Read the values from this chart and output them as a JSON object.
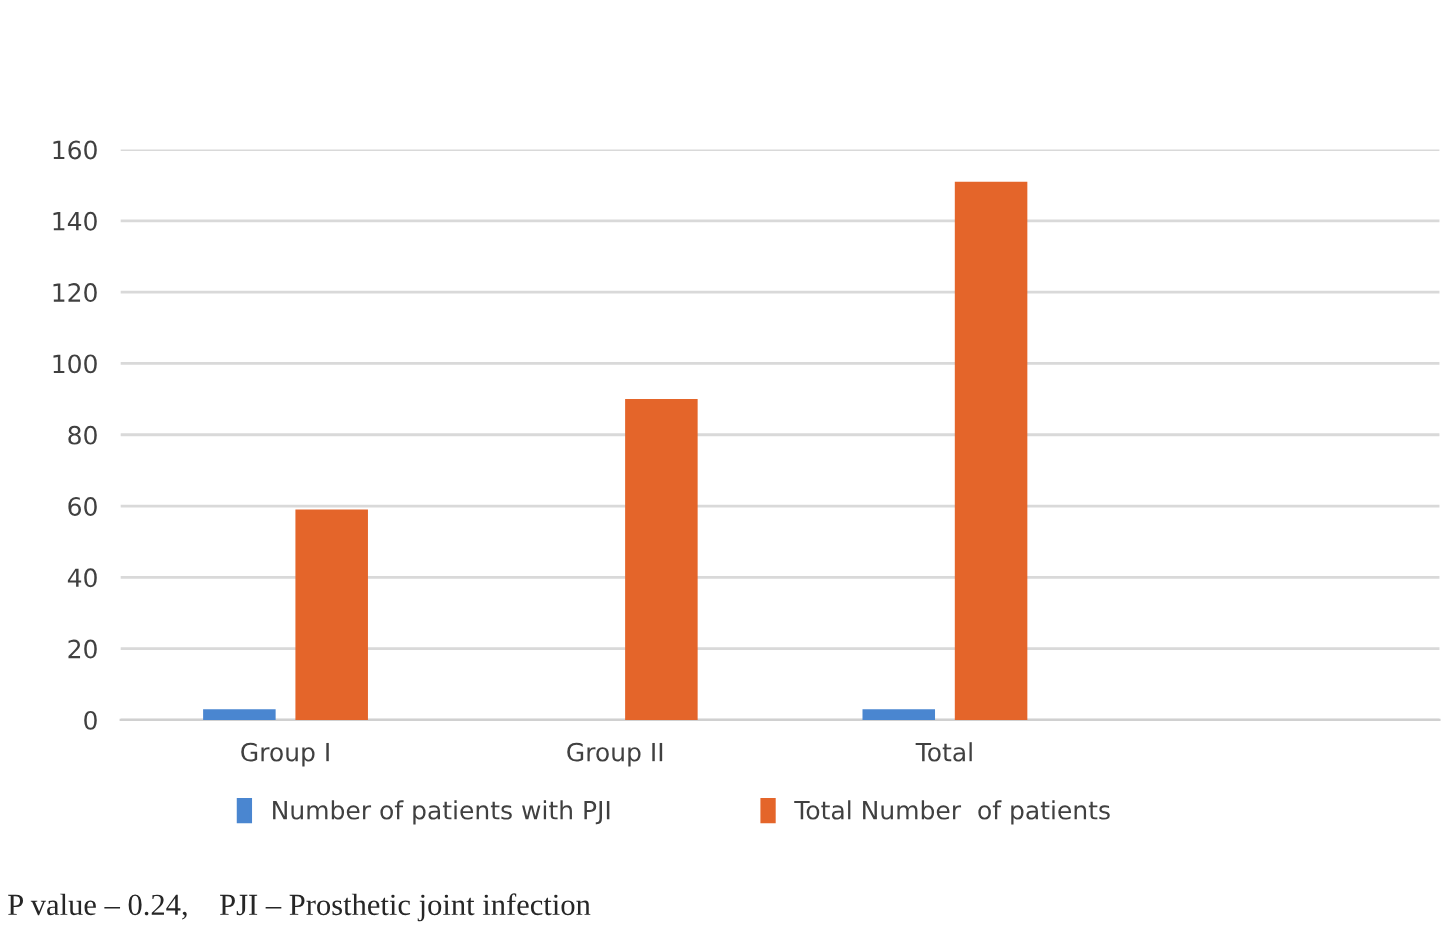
{
  "chart_data": {
    "type": "bar",
    "categories": [
      "Group I",
      "Group II",
      "Total",
      null
    ],
    "series": [
      {
        "name": "Number of patients with PJI",
        "color": "#4a86d0",
        "values": [
          3,
          null,
          3,
          null
        ]
      },
      {
        "name": "Total Number  of patients",
        "color": "#e4652a",
        "values": [
          59,
          90,
          151,
          null
        ]
      }
    ],
    "ylim": [
      0,
      160
    ],
    "yticks": [
      0,
      20,
      40,
      60,
      80,
      100,
      120,
      140,
      160
    ],
    "grid": "y",
    "legend": "bottom",
    "annotations": [
      "P value – 0.24,    PJI – Prosthetic joint infection"
    ]
  }
}
